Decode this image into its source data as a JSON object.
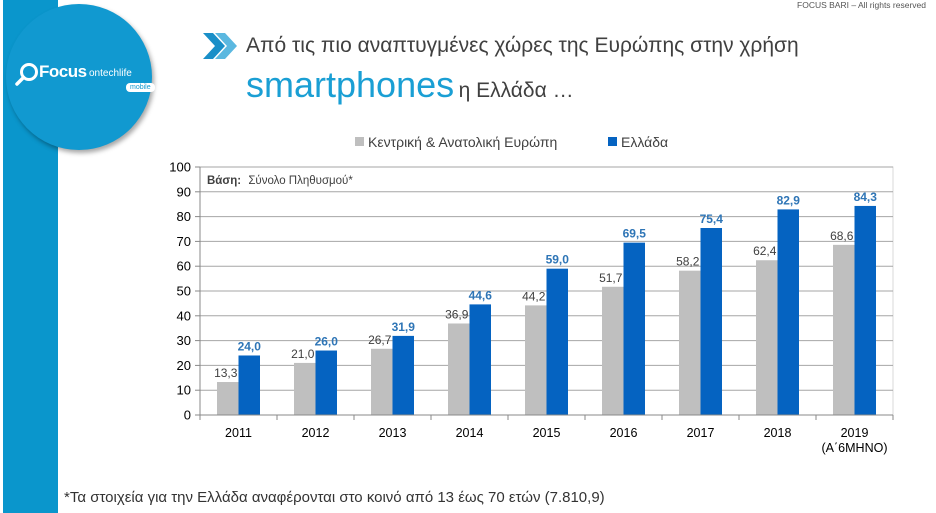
{
  "header": {
    "copyright": "FOCUS BARI – All rights reserved",
    "title_line1": "Από τις πιο αναπτυγμένες χώρες της Ευρώπης στην χρήση",
    "title_highlight": "smartphones",
    "title_line2_rest": "η Ελλάδα …",
    "chevron_icon": "double-chevron-right-icon"
  },
  "logo": {
    "brand": "Focus",
    "sub": "ontechlife",
    "tag": "mobile",
    "icon": "magnifier-icon"
  },
  "footnote": "*Τα στοιχεία για την Ελλάδα αναφέρονται στο κοινό από 13 έως 70 ετών (7.810,9)",
  "colors": {
    "accent": "#0a96cc",
    "greece": "#0563c1",
    "cee": "#bfbfbf",
    "greece_label": "#2e75b6",
    "cee_label": "#404040"
  },
  "chart_data": {
    "type": "bar",
    "title": "",
    "annotation": {
      "bold": "Βάση:",
      "text": "Σύνολο Πληθυσμού*"
    },
    "categories": [
      "2011",
      "2012",
      "2013",
      "2014",
      "2015",
      "2016",
      "2017",
      "2018",
      "2019"
    ],
    "category_sublabels": [
      "",
      "",
      "",
      "",
      "",
      "",
      "",
      "",
      "(Α΄6ΜΗΝΟ)"
    ],
    "series": [
      {
        "name": "Κεντρική & Ανατολική Ευρώπη",
        "color": "#bfbfbf",
        "values": [
          13.3,
          21.0,
          26.7,
          36.9,
          44.2,
          51.7,
          58.2,
          62.4,
          68.6
        ],
        "labels": [
          "13,3",
          "21,0",
          "26,7",
          "36,9",
          "44,2",
          "51,7",
          "58,2",
          "62,4",
          "68,6"
        ]
      },
      {
        "name": "Ελλάδα",
        "color": "#0563c1",
        "values": [
          24.0,
          26.0,
          31.9,
          44.6,
          59.0,
          69.5,
          75.4,
          82.9,
          84.3
        ],
        "labels": [
          "24,0",
          "26,0",
          "31,9",
          "44,6",
          "59,0",
          "69,5",
          "75,4",
          "82,9",
          "84,3"
        ]
      }
    ],
    "xlabel": "",
    "ylabel": "",
    "ylim": [
      0,
      100
    ],
    "yticks": [
      0,
      10,
      20,
      30,
      40,
      50,
      60,
      70,
      80,
      90,
      100
    ],
    "grid": true,
    "legend": "top-center"
  }
}
